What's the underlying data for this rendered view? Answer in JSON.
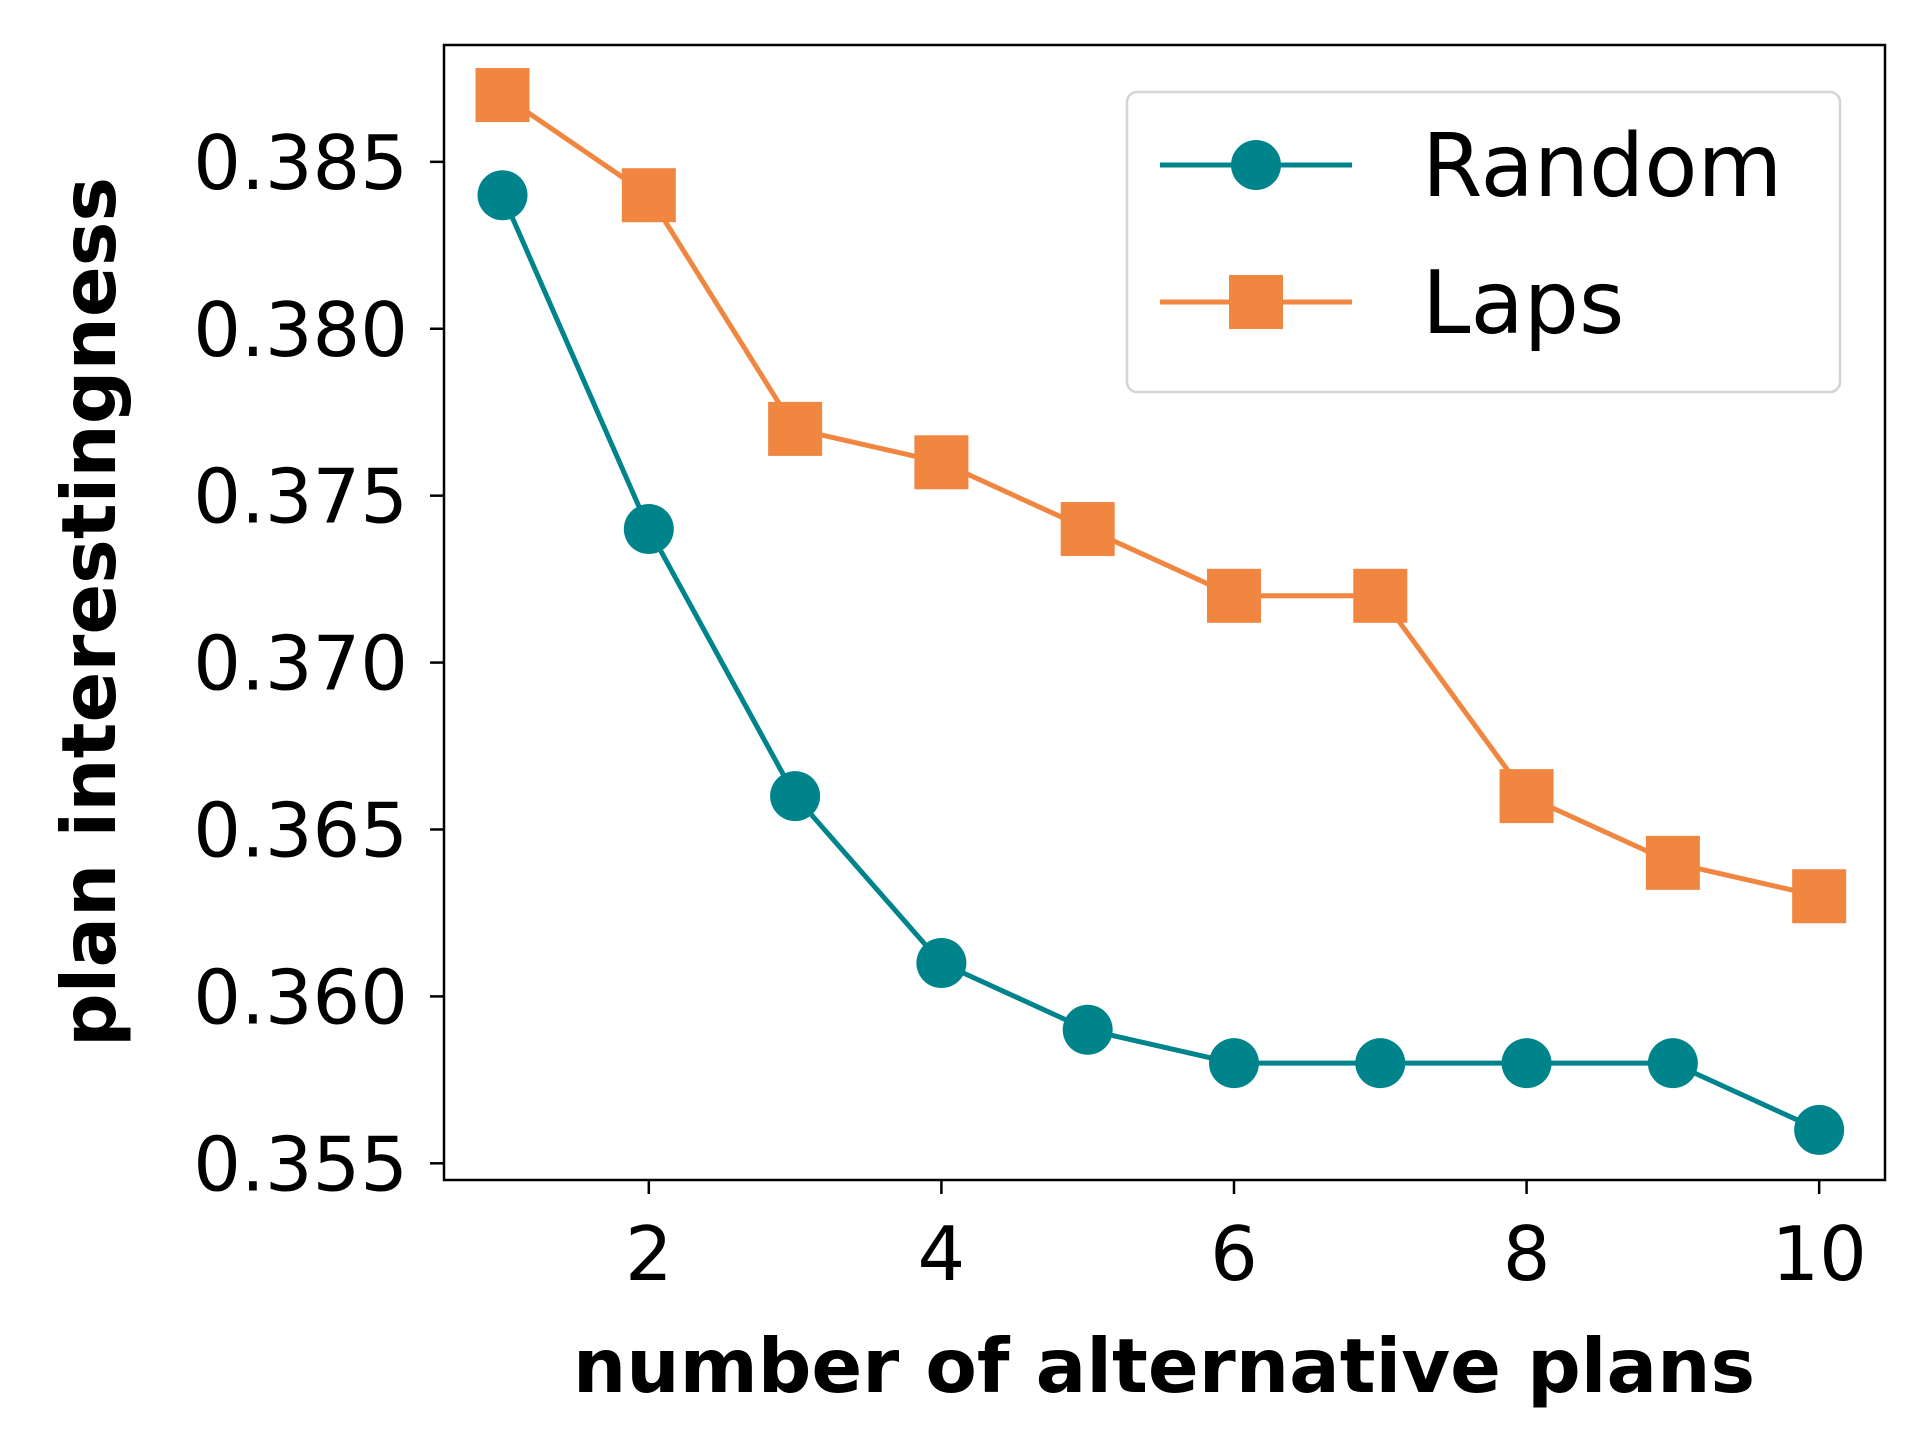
{
  "chart_data": {
    "type": "line",
    "title": "",
    "xlabel": "number of alternative plans",
    "ylabel": "plan interestingness",
    "x": [
      1,
      2,
      3,
      4,
      5,
      6,
      7,
      8,
      9,
      10
    ],
    "xlim": [
      0.6,
      10.45
    ],
    "ylim": [
      0.3545,
      0.3885
    ],
    "xticks": [
      2,
      4,
      6,
      8,
      10
    ],
    "xtick_labels": [
      "2",
      "4",
      "6",
      "8",
      "10"
    ],
    "yticks": [
      0.355,
      0.36,
      0.365,
      0.37,
      0.375,
      0.38,
      0.385
    ],
    "ytick_labels": [
      "0.355",
      "0.360",
      "0.365",
      "0.370",
      "0.375",
      "0.380",
      "0.385"
    ],
    "grid": false,
    "legend_position": "top-right",
    "series": [
      {
        "name": "Random",
        "color": "#00848c",
        "marker": "circle",
        "values": [
          0.384,
          0.374,
          0.366,
          0.361,
          0.359,
          0.358,
          0.358,
          0.358,
          0.358,
          0.356
        ]
      },
      {
        "name": "Laps",
        "color": "#f08640",
        "marker": "square",
        "values": [
          0.387,
          0.384,
          0.377,
          0.376,
          0.374,
          0.372,
          0.372,
          0.366,
          0.364,
          0.363
        ]
      }
    ]
  }
}
